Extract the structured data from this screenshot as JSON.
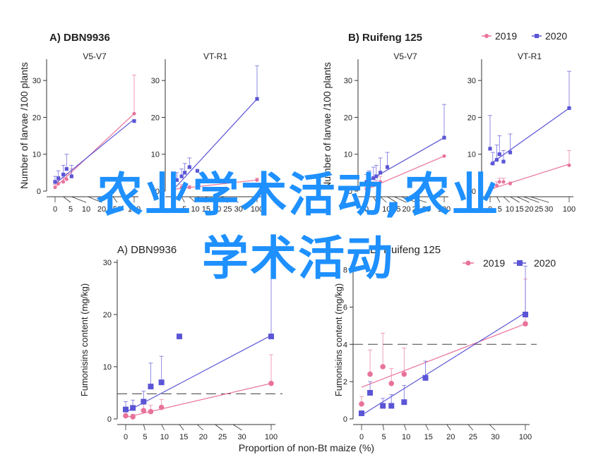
{
  "colors": {
    "y2019": "#e8739a",
    "y2020": "#5b55d6",
    "axis": "#333333",
    "watermark": "#1e90ff"
  },
  "legend_top": {
    "label_2019": "2019",
    "label_2020": "2020"
  },
  "legend_bottom": {
    "label_2019": "2019",
    "label_2020": "2020"
  },
  "watermark": {
    "line1": "农业学术活动,农业",
    "line2": "学术活动"
  },
  "top_figure": {
    "ylabel": "Number of larvae /100 plants",
    "xlabel": "Proportion of non-Bt maize (%)",
    "panel_a_title": "A)  DBN9936",
    "panel_b_title": "B)  Ruifeng 125"
  },
  "bottom_figure": {
    "ylabel": "Fumonisins content (mg/kg)",
    "xlabel": "Proportion of non-Bt maize (%)",
    "panel_a_title": "A) DBN9936",
    "panel_b_title": "B) Ruifeng 125"
  },
  "chart_data": [
    {
      "type": "scatter",
      "title": "V5-V7",
      "group": "A) DBN9936 (top)",
      "xticks": [
        "0",
        "5",
        "10",
        "20",
        "50",
        "100"
      ],
      "xlim": [
        0,
        100
      ],
      "yticks": [
        "0",
        "10",
        "20",
        "30"
      ],
      "ylim": [
        0,
        35
      ],
      "series": [
        {
          "name": "2019",
          "x": [
            0,
            2,
            5,
            7,
            10,
            100
          ],
          "y": [
            1,
            2,
            2.5,
            3.2,
            4,
            21
          ],
          "err": [
            0.8,
            1,
            1.2,
            1.5,
            2,
            10.5
          ],
          "fit": [
            [
              0,
              1
            ],
            [
              100,
              21
            ]
          ]
        },
        {
          "name": "2020",
          "x": [
            0,
            2,
            5,
            7,
            10,
            100
          ],
          "y": [
            2.5,
            3.5,
            4.5,
            6,
            4,
            19
          ],
          "err": [
            1.5,
            2,
            2.5,
            4,
            3,
            0
          ],
          "fit": [
            [
              0,
              2
            ],
            [
              100,
              19.5
            ]
          ]
        }
      ]
    },
    {
      "type": "scatter",
      "title": "VT-R1",
      "group": "A) DBN9936 (top)",
      "xticks": [
        "0",
        "5",
        "10",
        "15",
        "20",
        "25",
        "30",
        "100"
      ],
      "xlim": [
        0,
        100
      ],
      "yticks": [
        "0",
        "10",
        "20",
        "30"
      ],
      "ylim": [
        0,
        35
      ],
      "series": [
        {
          "name": "2019",
          "x": [
            0,
            5,
            10,
            100
          ],
          "y": [
            0.5,
            1,
            1,
            3
          ],
          "err": [
            0.5,
            0.8,
            0.5,
            0.5
          ],
          "fit": [
            [
              0,
              0.5
            ],
            [
              100,
              3
            ]
          ]
        },
        {
          "name": "2020",
          "x": [
            0,
            2,
            5,
            7,
            10,
            15,
            100
          ],
          "y": [
            2,
            3,
            4,
            5,
            6.5,
            5.5,
            25
          ],
          "err": [
            1.5,
            2,
            2,
            2.5,
            2.5,
            0,
            9
          ],
          "fit": [
            [
              0,
              0.5
            ],
            [
              100,
              25
            ]
          ]
        }
      ]
    },
    {
      "type": "scatter",
      "title": "V5-V7",
      "group": "B) Ruifeng 125 (top)",
      "xticks": [
        "0",
        "5",
        "10",
        "15",
        "20",
        "25",
        "30",
        "100"
      ],
      "xlim": [
        0,
        100
      ],
      "yticks": [
        "0",
        "10",
        "20",
        "30"
      ],
      "ylim": [
        0,
        35
      ],
      "series": [
        {
          "name": "2019",
          "x": [
            0,
            2,
            5,
            7,
            10,
            100
          ],
          "y": [
            0.5,
            1,
            1.5,
            2,
            2.5,
            9.5
          ],
          "err": [
            0.5,
            1,
            1,
            1,
            1.5,
            0
          ],
          "fit": [
            [
              0,
              0.5
            ],
            [
              100,
              9.5
            ]
          ]
        },
        {
          "name": "2020",
          "x": [
            0,
            2,
            5,
            7,
            10,
            15,
            100
          ],
          "y": [
            2.5,
            3,
            3.5,
            4,
            5,
            6.5,
            14.5
          ],
          "err": [
            2,
            2.5,
            3,
            3,
            4,
            4,
            9
          ],
          "fit": [
            [
              0,
              2.5
            ],
            [
              100,
              14.5
            ]
          ]
        }
      ]
    },
    {
      "type": "scatter",
      "title": "VT-R1",
      "group": "B) Ruifeng 125 (top)",
      "xticks": [
        "0",
        "5",
        "10",
        "15",
        "20",
        "25",
        "30",
        "100"
      ],
      "xlim": [
        0,
        100
      ],
      "yticks": [
        "0",
        "10",
        "20",
        "30"
      ],
      "ylim": [
        0,
        35
      ],
      "series": [
        {
          "name": "2019",
          "x": [
            0,
            2,
            5,
            7,
            10,
            15,
            100
          ],
          "y": [
            0.5,
            1,
            1.5,
            2.5,
            2.5,
            2,
            7
          ],
          "err": [
            0.5,
            0.8,
            1,
            1,
            1,
            0.5,
            4
          ],
          "fit": [
            [
              0,
              0.5
            ],
            [
              100,
              7.3
            ]
          ]
        },
        {
          "name": "2020",
          "x": [
            0,
            2,
            5,
            7,
            10,
            15,
            100
          ],
          "y": [
            11.5,
            7.5,
            8.5,
            10,
            8,
            10.5,
            22.5
          ],
          "err": [
            9,
            3,
            4,
            5,
            3,
            5,
            10
          ],
          "fit": [
            [
              0,
              7.3
            ],
            [
              100,
              22.5
            ]
          ]
        }
      ]
    },
    {
      "type": "scatter",
      "title": "",
      "group": "A) DBN9936 (bottom)",
      "xticks": [
        "0",
        "5",
        "10",
        "15",
        "20",
        "25",
        "30",
        "100"
      ],
      "xlim": [
        0,
        100
      ],
      "yticks": [
        "0",
        "10",
        "20",
        "30"
      ],
      "ylim": [
        0,
        30
      ],
      "hline": 4.8,
      "series": [
        {
          "name": "2019",
          "x": [
            0,
            2,
            5,
            7,
            10,
            100
          ],
          "y": [
            0.6,
            0.4,
            1.6,
            1.4,
            2.2,
            6.8
          ],
          "err": [
            1,
            0.5,
            1.5,
            1.2,
            1.5,
            5.5
          ],
          "fit": [
            [
              0,
              0.3
            ],
            [
              100,
              6.8
            ]
          ]
        },
        {
          "name": "2020",
          "x": [
            0,
            2,
            5,
            7,
            10,
            15,
            100
          ],
          "y": [
            1.8,
            2.1,
            3.3,
            6.2,
            7,
            15.8,
            15.8
          ],
          "err": [
            1.5,
            1.5,
            2,
            4.5,
            5,
            0,
            15
          ],
          "fit": [
            [
              0,
              1.3
            ],
            [
              100,
              16
            ]
          ]
        }
      ]
    },
    {
      "type": "scatter",
      "title": "",
      "group": "B) Ruifeng 125 (bottom)",
      "xticks": [
        "0",
        "5",
        "10",
        "15",
        "20",
        "25",
        "30",
        "100"
      ],
      "xlim": [
        0,
        100
      ],
      "yticks": [
        "0",
        "2",
        "4",
        "6",
        "8"
      ],
      "ylim": [
        0,
        8.4
      ],
      "hline": 4,
      "series": [
        {
          "name": "2019",
          "x": [
            0,
            2,
            5,
            7,
            10,
            100
          ],
          "y": [
            0.8,
            2.4,
            2.8,
            1.9,
            2.4,
            5.1
          ],
          "err": [
            0.4,
            1.3,
            1.8,
            0.8,
            1.4,
            2.4
          ],
          "fit": [
            [
              0,
              1.7
            ],
            [
              100,
              5.1
            ]
          ]
        },
        {
          "name": "2020",
          "x": [
            0,
            2,
            5,
            7,
            10,
            15,
            100
          ],
          "y": [
            0.3,
            1.4,
            0.7,
            0.7,
            0.9,
            2.2,
            5.6
          ],
          "err": [
            0,
            0.6,
            0.4,
            0.6,
            0.9,
            0.9,
            2.6
          ],
          "fit": [
            [
              0,
              0.2
            ],
            [
              100,
              5.7
            ]
          ]
        }
      ]
    }
  ]
}
